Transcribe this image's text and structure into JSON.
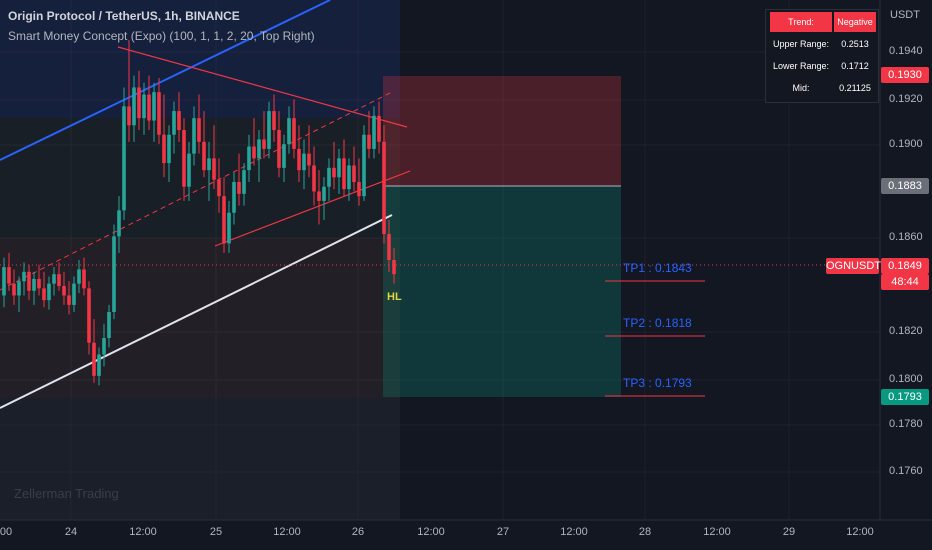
{
  "header": {
    "title": "Origin Protocol / TetherUS, 1h, BINANCE",
    "indicator": "Smart Money Concept (Expo) (100, 1, 1, 2, 20, Top Right)"
  },
  "info_table": {
    "rows": [
      {
        "label": "Trend:",
        "value": "Negative"
      },
      {
        "label": "Upper Range:",
        "value": "0.2513"
      },
      {
        "label": "Lower Range:",
        "value": "0.1712"
      },
      {
        "label": "Mid:",
        "value": "0.21125"
      }
    ]
  },
  "price_axis": {
    "unit": "USDT",
    "ticks": [
      "0.1940",
      "0.1920",
      "0.1900",
      "0.1860",
      "0.1820",
      "0.1800",
      "0.1780",
      "0.1760"
    ]
  },
  "price_tags": {
    "stop": "0.1930",
    "entry": "0.1883",
    "last_price": "0.1849",
    "countdown": "48:44",
    "tp3": "0.1793"
  },
  "symbol_tag": "OGNUSDT",
  "time_axis": {
    "ticks": [
      "00",
      "24",
      "12:00",
      "25",
      "12:00",
      "26",
      "12:00",
      "27",
      "12:00",
      "28",
      "12:00",
      "29",
      "12:00"
    ]
  },
  "targets": {
    "tp1": "TP1 : 0.1843",
    "tp2": "TP2 : 0.1818",
    "tp3": "TP3 : 0.1793"
  },
  "hl_label": "HL",
  "watermark": "Zellerman Trading",
  "colors": {
    "background": "#131722",
    "bull": "#26a69a",
    "bear": "#f23645",
    "channel_blue": "#2962ff",
    "trendline_white": "#e0e3eb",
    "target_text": "#2962ff"
  },
  "chart_data": {
    "type": "candlestick",
    "symbol": "OGNUSDT",
    "timeframe": "1h",
    "ylim": [
      0.1745,
      0.1965
    ],
    "x_ticks": [
      "00",
      "24",
      "12:00",
      "25",
      "12:00",
      "26",
      "12:00",
      "27",
      "12:00",
      "28",
      "12:00",
      "29",
      "12:00"
    ],
    "last_price": 0.1849,
    "candles": [
      [
        0.184,
        0.1856,
        0.1835,
        0.1852
      ],
      [
        0.1852,
        0.1858,
        0.1842,
        0.1845
      ],
      [
        0.1845,
        0.1851,
        0.1836,
        0.184
      ],
      [
        0.184,
        0.1848,
        0.1833,
        0.1846
      ],
      [
        0.1846,
        0.1854,
        0.184,
        0.185
      ],
      [
        0.185,
        0.1853,
        0.1838,
        0.1842
      ],
      [
        0.1842,
        0.185,
        0.1836,
        0.1847
      ],
      [
        0.1847,
        0.1853,
        0.184,
        0.1843
      ],
      [
        0.1843,
        0.185,
        0.1835,
        0.1838
      ],
      [
        0.1838,
        0.1848,
        0.1834,
        0.1845
      ],
      [
        0.1845,
        0.1852,
        0.184,
        0.1849
      ],
      [
        0.1849,
        0.1854,
        0.1842,
        0.1844
      ],
      [
        0.1844,
        0.185,
        0.1836,
        0.184
      ],
      [
        0.184,
        0.1846,
        0.1832,
        0.1836
      ],
      [
        0.1836,
        0.1848,
        0.1833,
        0.1845
      ],
      [
        0.1845,
        0.1855,
        0.1841,
        0.1851
      ],
      [
        0.1851,
        0.1856,
        0.184,
        0.1843
      ],
      [
        0.1843,
        0.1846,
        0.1815,
        0.182
      ],
      [
        0.182,
        0.183,
        0.1803,
        0.1806
      ],
      [
        0.1806,
        0.1818,
        0.1802,
        0.1815
      ],
      [
        0.1815,
        0.1828,
        0.181,
        0.1822
      ],
      [
        0.1822,
        0.1836,
        0.1818,
        0.1833
      ],
      [
        0.1833,
        0.187,
        0.183,
        0.1865
      ],
      [
        0.1865,
        0.1882,
        0.1858,
        0.1876
      ],
      [
        0.1876,
        0.1928,
        0.1872,
        0.192
      ],
      [
        0.192,
        0.1948,
        0.1905,
        0.1912
      ],
      [
        0.1912,
        0.1933,
        0.1905,
        0.1928
      ],
      [
        0.1928,
        0.1935,
        0.191,
        0.1915
      ],
      [
        0.1915,
        0.193,
        0.1908,
        0.1925
      ],
      [
        0.1925,
        0.1933,
        0.191,
        0.1914
      ],
      [
        0.1914,
        0.193,
        0.1905,
        0.1926
      ],
      [
        0.1926,
        0.1932,
        0.1904,
        0.1908
      ],
      [
        0.1908,
        0.1925,
        0.189,
        0.1896
      ],
      [
        0.1896,
        0.1912,
        0.1888,
        0.1908
      ],
      [
        0.1908,
        0.1922,
        0.19,
        0.1918
      ],
      [
        0.1918,
        0.1926,
        0.1905,
        0.191
      ],
      [
        0.191,
        0.1915,
        0.188,
        0.1886
      ],
      [
        0.1886,
        0.1905,
        0.188,
        0.19
      ],
      [
        0.19,
        0.192,
        0.1895,
        0.1915
      ],
      [
        0.1915,
        0.1925,
        0.19,
        0.1905
      ],
      [
        0.1905,
        0.1918,
        0.189,
        0.1893
      ],
      [
        0.1893,
        0.1905,
        0.188,
        0.1898
      ],
      [
        0.1898,
        0.1912,
        0.1885,
        0.1889
      ],
      [
        0.1889,
        0.1898,
        0.1875,
        0.1882
      ],
      [
        0.1882,
        0.189,
        0.1858,
        0.1862
      ],
      [
        0.1862,
        0.188,
        0.1858,
        0.1875
      ],
      [
        0.1875,
        0.1892,
        0.187,
        0.1888
      ],
      [
        0.1888,
        0.19,
        0.1878,
        0.1883
      ],
      [
        0.1883,
        0.1896,
        0.1878,
        0.1893
      ],
      [
        0.1893,
        0.1908,
        0.1888,
        0.1903
      ],
      [
        0.1903,
        0.1915,
        0.1895,
        0.1898
      ],
      [
        0.1898,
        0.191,
        0.1888,
        0.1906
      ],
      [
        0.1906,
        0.1918,
        0.1898,
        0.1902
      ],
      [
        0.1902,
        0.1922,
        0.1898,
        0.1918
      ],
      [
        0.1918,
        0.1925,
        0.1905,
        0.191
      ],
      [
        0.191,
        0.1918,
        0.189,
        0.1894
      ],
      [
        0.1894,
        0.1908,
        0.1888,
        0.1904
      ],
      [
        0.1904,
        0.192,
        0.19,
        0.1915
      ],
      [
        0.1915,
        0.1923,
        0.1898,
        0.1902
      ],
      [
        0.1902,
        0.1912,
        0.1888,
        0.1893
      ],
      [
        0.1893,
        0.1906,
        0.1885,
        0.19
      ],
      [
        0.19,
        0.1912,
        0.189,
        0.1895
      ],
      [
        0.1895,
        0.1903,
        0.1878,
        0.1884
      ],
      [
        0.1884,
        0.1893,
        0.187,
        0.188
      ],
      [
        0.188,
        0.189,
        0.1872,
        0.1886
      ],
      [
        0.1886,
        0.1898,
        0.188,
        0.1894
      ],
      [
        0.1894,
        0.1905,
        0.1885,
        0.189
      ],
      [
        0.189,
        0.1902,
        0.1883,
        0.1898
      ],
      [
        0.1898,
        0.1906,
        0.1882,
        0.1885
      ],
      [
        0.1885,
        0.1898,
        0.188,
        0.1895
      ],
      [
        0.1895,
        0.1903,
        0.1884,
        0.1888
      ],
      [
        0.1888,
        0.1898,
        0.1878,
        0.1882
      ],
      [
        0.1882,
        0.1912,
        0.188,
        0.1908
      ],
      [
        0.1908,
        0.1918,
        0.1898,
        0.1902
      ],
      [
        0.1902,
        0.192,
        0.1898,
        0.1916
      ],
      [
        0.1916,
        0.1922,
        0.19,
        0.1905
      ],
      [
        0.1905,
        0.1912,
        0.1862,
        0.1866
      ],
      [
        0.1866,
        0.1872,
        0.185,
        0.1855
      ],
      [
        0.1855,
        0.186,
        0.1845,
        0.1849
      ]
    ],
    "targets": [
      {
        "label": "TP1",
        "price": 0.1843
      },
      {
        "label": "TP2",
        "price": 0.1818
      },
      {
        "label": "TP3",
        "price": 0.1793
      }
    ],
    "position": {
      "entry": 0.1883,
      "stop": 0.193,
      "target": 0.1793
    },
    "info_table": {
      "trend": "Negative",
      "upper_range": 0.2513,
      "lower_range": 0.1712,
      "mid": 0.21125
    }
  }
}
